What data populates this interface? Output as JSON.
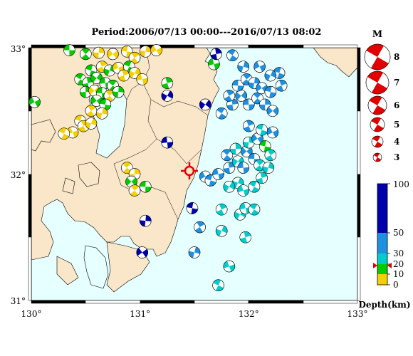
{
  "title": "Period:2006/07/13 00:00---2016/07/13 08:02",
  "map": {
    "lon_ticks": [
      "130°",
      "131°",
      "132°",
      "133°"
    ],
    "lat_ticks": [
      "33°",
      "32°",
      "31°"
    ],
    "sea_color": "#e6ffff",
    "land_color": "#fae6c8"
  },
  "legend_magnitude": {
    "header": "M",
    "items": [
      "8",
      "7",
      "6",
      "5",
      "4",
      "3"
    ]
  },
  "legend_depth": {
    "title": "Depth(km)",
    "ticks": [
      "100",
      "50",
      "30",
      "20",
      "10",
      "0"
    ],
    "colors": [
      {
        "label": "0-10",
        "hex": "#f5d000"
      },
      {
        "label": "10-20",
        "hex": "#00cc00"
      },
      {
        "label": "20-30",
        "hex": "#00cccc"
      },
      {
        "label": "30-50",
        "hex": "#1e90e0"
      },
      {
        "label": "50-100",
        "hex": "#0000aa"
      }
    ]
  },
  "events": [
    {
      "lon": 130.35,
      "lat": 32.98,
      "c": "#00cc00"
    },
    {
      "lon": 130.5,
      "lat": 32.95,
      "c": "#00cc00"
    },
    {
      "lon": 130.62,
      "lat": 32.96,
      "c": "#f5d000"
    },
    {
      "lon": 130.75,
      "lat": 32.95,
      "c": "#f5d000"
    },
    {
      "lon": 130.88,
      "lat": 32.97,
      "c": "#f5d000"
    },
    {
      "lon": 130.95,
      "lat": 32.92,
      "c": "#f5d000"
    },
    {
      "lon": 131.05,
      "lat": 32.97,
      "c": "#f5d000"
    },
    {
      "lon": 131.15,
      "lat": 32.98,
      "c": "#f5d000"
    },
    {
      "lon": 130.55,
      "lat": 32.82,
      "c": "#00cc00"
    },
    {
      "lon": 130.65,
      "lat": 32.85,
      "c": "#f5d000"
    },
    {
      "lon": 130.72,
      "lat": 32.82,
      "c": "#00cc00"
    },
    {
      "lon": 130.8,
      "lat": 32.84,
      "c": "#f5d000"
    },
    {
      "lon": 130.9,
      "lat": 32.85,
      "c": "#00cc00"
    },
    {
      "lon": 130.85,
      "lat": 32.78,
      "c": "#f5d000"
    },
    {
      "lon": 130.95,
      "lat": 32.8,
      "c": "#f5d000"
    },
    {
      "lon": 131.02,
      "lat": 32.75,
      "c": "#f5d000"
    },
    {
      "lon": 130.45,
      "lat": 32.75,
      "c": "#00cc00"
    },
    {
      "lon": 130.52,
      "lat": 32.72,
      "c": "#00cc00"
    },
    {
      "lon": 130.6,
      "lat": 32.76,
      "c": "#00cc00"
    },
    {
      "lon": 130.68,
      "lat": 32.72,
      "c": "#00cc00"
    },
    {
      "lon": 130.75,
      "lat": 32.7,
      "c": "#00cc00"
    },
    {
      "lon": 130.5,
      "lat": 32.65,
      "c": "#00cc00"
    },
    {
      "lon": 130.58,
      "lat": 32.66,
      "c": "#f5d000"
    },
    {
      "lon": 130.65,
      "lat": 32.64,
      "c": "#00cc00"
    },
    {
      "lon": 130.72,
      "lat": 32.62,
      "c": "#f5d000"
    },
    {
      "lon": 130.8,
      "lat": 32.65,
      "c": "#00cc00"
    },
    {
      "lon": 130.6,
      "lat": 32.58,
      "c": "#00cc00"
    },
    {
      "lon": 130.68,
      "lat": 32.55,
      "c": "#00cc00"
    },
    {
      "lon": 130.55,
      "lat": 32.5,
      "c": "#f5d000"
    },
    {
      "lon": 130.65,
      "lat": 32.48,
      "c": "#f5d000"
    },
    {
      "lon": 130.03,
      "lat": 32.57,
      "c": "#00cc00"
    },
    {
      "lon": 130.45,
      "lat": 32.42,
      "c": "#f5d000"
    },
    {
      "lon": 130.48,
      "lat": 32.38,
      "c": "#f5d000"
    },
    {
      "lon": 130.55,
      "lat": 32.4,
      "c": "#f5d000"
    },
    {
      "lon": 130.38,
      "lat": 32.33,
      "c": "#f5d000"
    },
    {
      "lon": 130.3,
      "lat": 32.32,
      "c": "#f5d000"
    },
    {
      "lon": 131.25,
      "lat": 32.72,
      "c": "#00cc00"
    },
    {
      "lon": 131.25,
      "lat": 32.62,
      "c": "#0000aa"
    },
    {
      "lon": 131.68,
      "lat": 32.87,
      "c": "#00cc00"
    },
    {
      "lon": 131.85,
      "lat": 32.94,
      "c": "#1e90e0"
    },
    {
      "lon": 131.7,
      "lat": 32.95,
      "c": "#0000aa"
    },
    {
      "lon": 131.6,
      "lat": 32.55,
      "c": "#0000aa"
    },
    {
      "lon": 131.25,
      "lat": 32.25,
      "c": "#0000aa"
    },
    {
      "lon": 130.88,
      "lat": 32.05,
      "c": "#f5d000"
    },
    {
      "lon": 130.95,
      "lat": 32.0,
      "c": "#f5d000"
    },
    {
      "lon": 130.92,
      "lat": 31.94,
      "c": "#00cc00"
    },
    {
      "lon": 131.05,
      "lat": 31.9,
      "c": "#00cc00"
    },
    {
      "lon": 130.95,
      "lat": 31.87,
      "c": "#f5d000"
    },
    {
      "lon": 131.05,
      "lat": 31.63,
      "c": "#0000aa"
    },
    {
      "lon": 131.02,
      "lat": 31.38,
      "c": "#0000aa"
    },
    {
      "lon": 131.48,
      "lat": 31.73,
      "c": "#0000aa"
    },
    {
      "lon": 131.55,
      "lat": 31.58,
      "c": "#1e90e0"
    },
    {
      "lon": 131.5,
      "lat": 31.38,
      "c": "#1e90e0"
    },
    {
      "lon": 131.6,
      "lat": 31.98,
      "c": "#1e90e0"
    },
    {
      "lon": 131.65,
      "lat": 31.95,
      "c": "#1e90e0"
    },
    {
      "lon": 131.75,
      "lat": 31.72,
      "c": "#00cccc"
    },
    {
      "lon": 131.75,
      "lat": 31.55,
      "c": "#00cccc"
    },
    {
      "lon": 131.82,
      "lat": 31.27,
      "c": "#00cccc"
    },
    {
      "lon": 131.72,
      "lat": 31.12,
      "c": "#00cccc"
    },
    {
      "lon": 131.97,
      "lat": 31.5,
      "c": "#00cccc"
    },
    {
      "lon": 131.92,
      "lat": 31.68,
      "c": "#00cccc"
    },
    {
      "lon": 131.97,
      "lat": 31.73,
      "c": "#00cccc"
    },
    {
      "lon": 132.05,
      "lat": 31.72,
      "c": "#00cccc"
    },
    {
      "lon": 131.82,
      "lat": 32.05,
      "c": "#1e90e0"
    },
    {
      "lon": 131.9,
      "lat": 32.1,
      "c": "#00cccc"
    },
    {
      "lon": 131.95,
      "lat": 32.05,
      "c": "#1e90e0"
    },
    {
      "lon": 131.8,
      "lat": 32.15,
      "c": "#1e90e0"
    },
    {
      "lon": 131.88,
      "lat": 32.2,
      "c": "#00cccc"
    },
    {
      "lon": 131.98,
      "lat": 32.18,
      "c": "#1e90e0"
    },
    {
      "lon": 132.05,
      "lat": 32.12,
      "c": "#1e90e0"
    },
    {
      "lon": 132.1,
      "lat": 32.07,
      "c": "#00cccc"
    },
    {
      "lon": 132.0,
      "lat": 32.25,
      "c": "#00cccc"
    },
    {
      "lon": 132.08,
      "lat": 32.28,
      "c": "#1e90e0"
    },
    {
      "lon": 132.15,
      "lat": 32.22,
      "c": "#00cc00"
    },
    {
      "lon": 132.2,
      "lat": 32.15,
      "c": "#00cccc"
    },
    {
      "lon": 132.18,
      "lat": 32.05,
      "c": "#00cccc"
    },
    {
      "lon": 132.22,
      "lat": 32.33,
      "c": "#1e90e0"
    },
    {
      "lon": 132.12,
      "lat": 32.35,
      "c": "#00cccc"
    },
    {
      "lon": 132.0,
      "lat": 32.38,
      "c": "#1e90e0"
    },
    {
      "lon": 131.9,
      "lat": 31.93,
      "c": "#00cccc"
    },
    {
      "lon": 131.95,
      "lat": 31.87,
      "c": "#00cccc"
    },
    {
      "lon": 132.05,
      "lat": 31.9,
      "c": "#00cccc"
    },
    {
      "lon": 132.12,
      "lat": 31.97,
      "c": "#00cccc"
    },
    {
      "lon": 131.82,
      "lat": 31.9,
      "c": "#00cccc"
    },
    {
      "lon": 131.72,
      "lat": 32.0,
      "c": "#1e90e0"
    },
    {
      "lon": 131.75,
      "lat": 32.48,
      "c": "#1e90e0"
    },
    {
      "lon": 131.85,
      "lat": 32.55,
      "c": "#1e90e0"
    },
    {
      "lon": 131.93,
      "lat": 32.62,
      "c": "#1e90e0"
    },
    {
      "lon": 132.0,
      "lat": 32.55,
      "c": "#1e90e0"
    },
    {
      "lon": 132.08,
      "lat": 32.6,
      "c": "#1e90e0"
    },
    {
      "lon": 132.15,
      "lat": 32.55,
      "c": "#1e90e0"
    },
    {
      "lon": 132.22,
      "lat": 32.5,
      "c": "#1e90e0"
    },
    {
      "lon": 131.9,
      "lat": 32.7,
      "c": "#1e90e0"
    },
    {
      "lon": 131.98,
      "lat": 32.75,
      "c": "#1e90e0"
    },
    {
      "lon": 132.05,
      "lat": 32.72,
      "c": "#1e90e0"
    },
    {
      "lon": 132.12,
      "lat": 32.68,
      "c": "#1e90e0"
    },
    {
      "lon": 132.2,
      "lat": 32.65,
      "c": "#1e90e0"
    },
    {
      "lon": 131.82,
      "lat": 32.62,
      "c": "#1e90e0"
    },
    {
      "lon": 131.95,
      "lat": 32.85,
      "c": "#1e90e0"
    },
    {
      "lon": 132.1,
      "lat": 32.85,
      "c": "#1e90e0"
    },
    {
      "lon": 132.28,
      "lat": 32.8,
      "c": "#1e90e0"
    },
    {
      "lon": 132.3,
      "lat": 32.7,
      "c": "#1e90e0"
    },
    {
      "lon": 132.2,
      "lat": 32.78,
      "c": "#1e90e0"
    }
  ]
}
